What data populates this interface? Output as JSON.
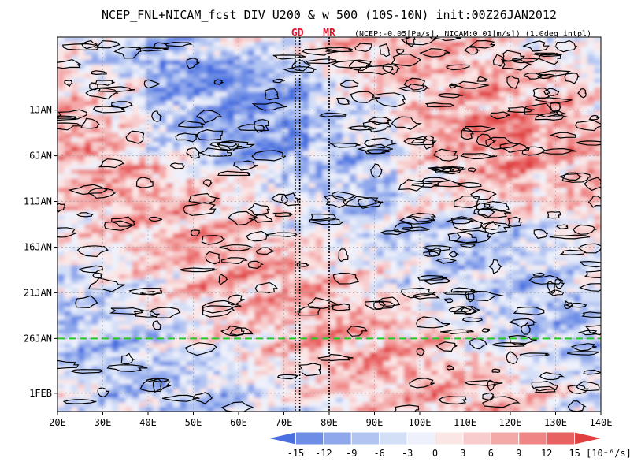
{
  "chart_data": {
    "type": "heatmap",
    "title": "NCEP_FNL+NICAM_fcst DIV U200 & w 500 (10S-10N) init:00Z26JAN2012",
    "subtitle": "(NCEP:-0.05[Pa/s], NICAM:0.01[m/s]) (1.0deg intpl)",
    "x_axis": {
      "range": [
        20,
        140
      ],
      "ticks": [
        {
          "value": 20,
          "label": "20E"
        },
        {
          "value": 30,
          "label": "30E"
        },
        {
          "value": 40,
          "label": "40E"
        },
        {
          "value": 50,
          "label": "50E"
        },
        {
          "value": 60,
          "label": "60E"
        },
        {
          "value": 70,
          "label": "70E"
        },
        {
          "value": 80,
          "label": "80E"
        },
        {
          "value": 90,
          "label": "90E"
        },
        {
          "value": 100,
          "label": "100E"
        },
        {
          "value": 110,
          "label": "110E"
        },
        {
          "value": 120,
          "label": "120E"
        },
        {
          "value": 130,
          "label": "130E"
        },
        {
          "value": 140,
          "label": "140E"
        }
      ]
    },
    "y_axis": {
      "range": [
        "2011-12-24",
        "2012-02-03"
      ],
      "ticks": [
        {
          "value": "2012-01-01",
          "label": "1JAN"
        },
        {
          "value": "2012-01-06",
          "label": "6JAN"
        },
        {
          "value": "2012-01-11",
          "label": "11JAN"
        },
        {
          "value": "2012-01-16",
          "label": "16JAN"
        },
        {
          "value": "2012-01-21",
          "label": "21JAN"
        },
        {
          "value": "2012-01-26",
          "label": "26JAN"
        },
        {
          "value": "2012-02-01",
          "label": "1FEB"
        }
      ]
    },
    "markers": [
      {
        "label": "GD",
        "lons": [
          72.5,
          73.5
        ]
      },
      {
        "label": "MR",
        "lons": [
          80
        ]
      }
    ],
    "init_line": {
      "value": "2012-01-26",
      "color": "#22cc22"
    },
    "colorbar": {
      "levels": [
        "-15",
        "-12",
        "-9",
        "-6",
        "-3",
        "0",
        "3",
        "6",
        "9",
        "12",
        "15"
      ],
      "colors": [
        "#4a6fe0",
        "#6d8de6",
        "#8fa8ec",
        "#b2c4f2",
        "#d3def7",
        "#eef1fb",
        "#fbe6e6",
        "#f8cccc",
        "#f4a9a9",
        "#ef8585",
        "#e86262",
        "#e04040"
      ],
      "units": "[10⁻⁶/s]"
    },
    "grid": true
  }
}
